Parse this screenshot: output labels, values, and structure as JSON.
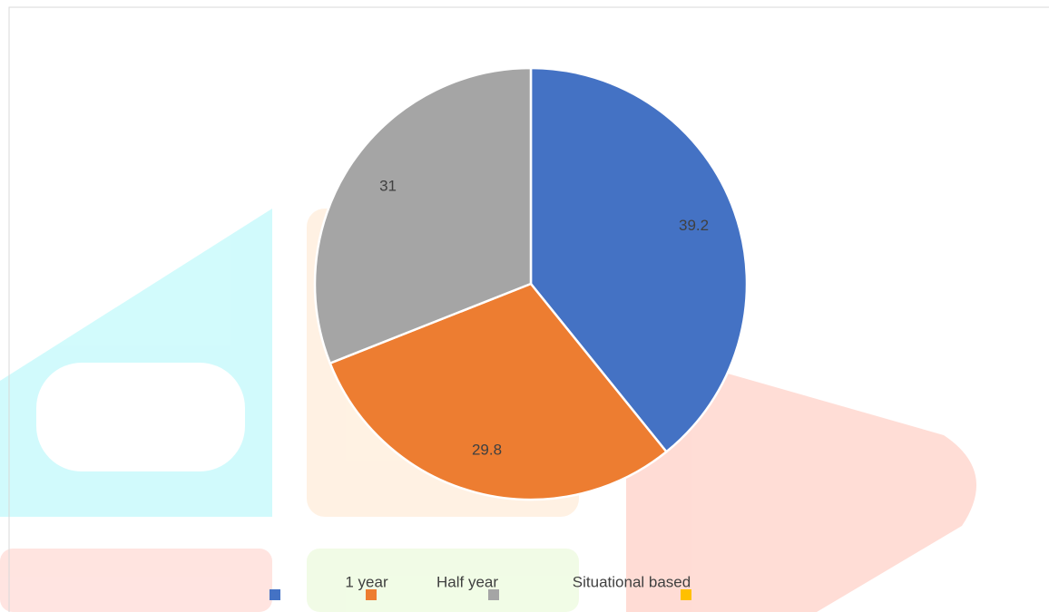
{
  "chart_data": {
    "type": "pie",
    "categories": [
      null,
      "1 year",
      "Half year",
      "Situational based"
    ],
    "values": [
      39.2,
      29.8,
      31,
      0
    ],
    "colors": [
      "#4472c4",
      "#ed7d31",
      "#a5a5a5",
      "#ffc000"
    ],
    "legend": "bottom"
  }
}
